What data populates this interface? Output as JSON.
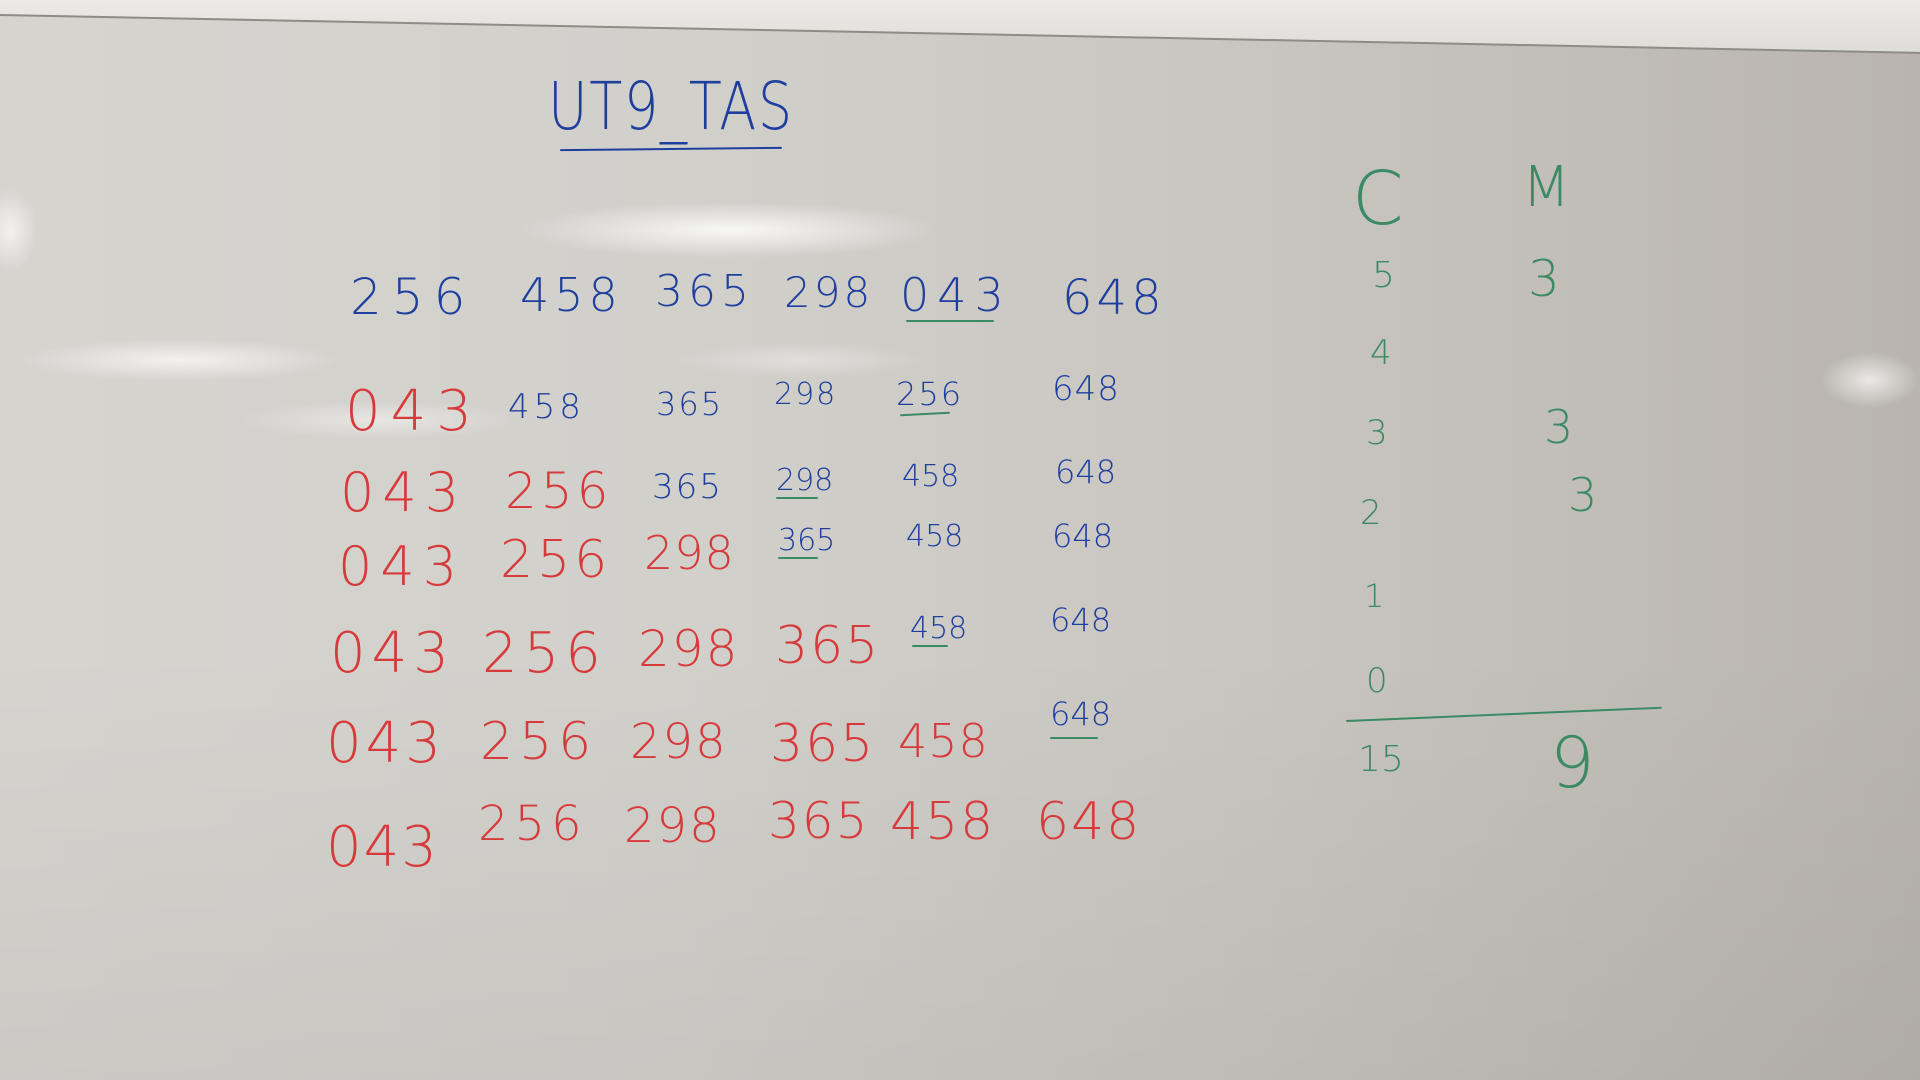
{
  "title": "UT9_TAS",
  "colors": {
    "blue": "#1f3f9e",
    "red": "#d63a3a",
    "green": "#3c8a63",
    "board": "#d2d0cb"
  },
  "sorting_table": {
    "initial_row": [
      "256",
      "458",
      "365",
      "298",
      "043",
      "648"
    ],
    "passes": [
      [
        "043",
        "458",
        "365",
        "298",
        "256",
        "648"
      ],
      [
        "043",
        "256",
        "365",
        "298",
        "458",
        "648"
      ],
      [
        "043",
        "256",
        "298",
        "365",
        "458",
        "648"
      ],
      [
        "043",
        "256",
        "298",
        "365",
        "458",
        "648"
      ],
      [
        "043",
        "256",
        "298",
        "365",
        "458",
        "648"
      ],
      [
        "043",
        "256",
        "298",
        "365",
        "458",
        "648"
      ]
    ]
  },
  "tally": {
    "header_c": "C",
    "header_m": "M",
    "c_values": [
      "5",
      "4",
      "3",
      "2",
      "1",
      "0"
    ],
    "m_values": [
      "3",
      "3",
      "3"
    ],
    "total_c": "15",
    "total_m": "9"
  }
}
